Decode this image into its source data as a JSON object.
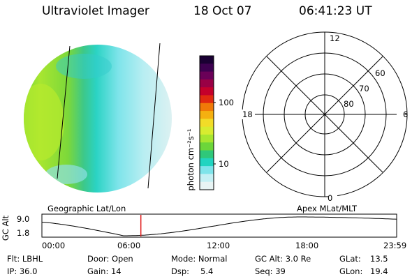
{
  "header": {
    "title": "Ultraviolet Imager",
    "date": "18 Oct 07",
    "time": "06:41:23 UT"
  },
  "colorbar": {
    "label": "photon cm⁻²s⁻¹",
    "ticks": [
      "100",
      "10"
    ],
    "colors": [
      "#1a0033",
      "#3d0050",
      "#6a0058",
      "#990045",
      "#c4002b",
      "#e02a10",
      "#f07a08",
      "#f5b010",
      "#f2dc28",
      "#d8ec30",
      "#a8e630",
      "#6cd63a",
      "#2fc87a",
      "#22d4c0",
      "#7ee4ea",
      "#c4f0f4",
      "#e8f4f4"
    ]
  },
  "polar_plot": {
    "mlt_labels": {
      "top": "12",
      "right": "6",
      "bottom": "0",
      "left": "18"
    },
    "lat_labels": [
      "60",
      "70",
      "80"
    ]
  },
  "timeline": {
    "left_title": "Geographic Lat/Lon",
    "right_title": "Apex MLat/MLT",
    "ylabel": "GC Alt",
    "yticks": [
      "9.0",
      "1.8"
    ],
    "xticks": [
      "00:00",
      "06:00",
      "12:00",
      "18:00",
      "23:59"
    ],
    "current_time_fraction": 0.279
  },
  "info": {
    "flt": "Flt: LBHL",
    "ip": "IP: 36.0",
    "door": "Door: Open",
    "gain": "Gain: 14",
    "mode": "Mode: Normal",
    "dsp_label": "Dsp:",
    "dsp_value": "5.4",
    "gc_alt": "GC Alt: 3.0 Re",
    "seq": "Seq: 39",
    "glat_label": "GLat:",
    "glat_value": "13.5",
    "glon_label": "GLon:",
    "glon_value": "19.4"
  }
}
